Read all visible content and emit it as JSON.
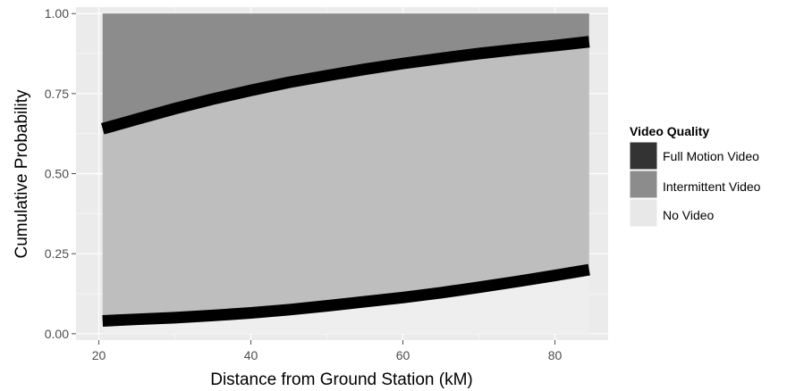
{
  "chart_data": {
    "type": "area",
    "title": "",
    "xlabel": "Distance from Ground Station (kM)",
    "ylabel": "Cumulative Probability",
    "xlim": [
      17,
      87
    ],
    "ylim": [
      -0.02,
      1.02
    ],
    "x_ticks": [
      20,
      40,
      60,
      80
    ],
    "y_ticks": [
      0.0,
      0.25,
      0.5,
      0.75,
      1.0
    ],
    "x_tick_labels": [
      "20",
      "40",
      "60",
      "80"
    ],
    "y_tick_labels": [
      "0.00",
      "0.25",
      "0.50",
      "0.75",
      "1.00"
    ],
    "grid": true,
    "legend_position": "right",
    "legend": {
      "title": "Video Quality",
      "entries": [
        {
          "label": "Full Motion Video",
          "color": "#333333"
        },
        {
          "label": "Intermittent Video",
          "color": "#8c8c8c"
        },
        {
          "label": "No Video",
          "color": "#e8e8e8"
        }
      ]
    },
    "x": [
      20.5,
      25,
      30,
      35,
      40,
      45,
      50,
      55,
      60,
      65,
      70,
      75,
      80,
      84.5
    ],
    "series": [
      {
        "values": [
          0.04,
          0.045,
          0.05,
          0.057,
          0.065,
          0.075,
          0.087,
          0.1,
          0.113,
          0.128,
          0.145,
          0.163,
          0.182,
          0.2
        ]
      },
      {
        "values": [
          0.64,
          0.67,
          0.703,
          0.733,
          0.76,
          0.785,
          0.806,
          0.826,
          0.844,
          0.86,
          0.875,
          0.888,
          0.9,
          0.912
        ]
      }
    ],
    "colors": {
      "upper_band": "#8c8c8c",
      "middle_band": "#bebebe",
      "lower_band": "#eeeeee",
      "boundary_line": "#000000",
      "panel_background": "#ebebeb",
      "grid_major": "#ffffff",
      "grid_minor": "#f5f5f5"
    }
  }
}
